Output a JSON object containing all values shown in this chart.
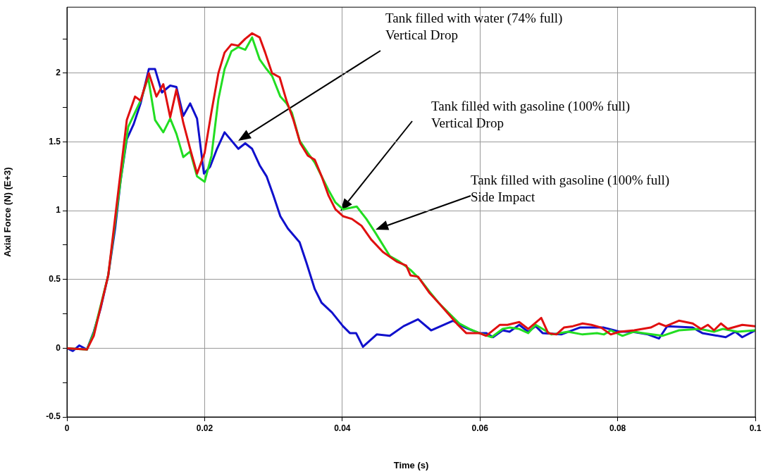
{
  "chart_data": {
    "type": "line",
    "xlabel": "Time (s)",
    "ylabel": "Axial Force (N) (E+3)",
    "xlim": [
      0,
      0.1
    ],
    "xticks": [
      0,
      0.02,
      0.04,
      0.06,
      0.08,
      0.1
    ],
    "ylim": [
      -0.5,
      2.48
    ],
    "yticks": [
      -0.5,
      {
        "value": -0.25,
        "label": null
      },
      0,
      {
        "value": 0.25,
        "label": null
      },
      0.5,
      {
        "value": 0.75,
        "label": null
      },
      1,
      {
        "value": 1.25,
        "label": null
      },
      1.5,
      {
        "value": 1.75,
        "label": null
      },
      2,
      {
        "value": 2.25,
        "label": null
      }
    ],
    "grid": true,
    "legend": false,
    "marker": "none",
    "line_style": "solid",
    "series": [
      {
        "color": "#e01010",
        "x": [
          0,
          0.0029,
          0.0039,
          0.006,
          0.0087,
          0.0099,
          0.0107,
          0.0119,
          0.013,
          0.014,
          0.015,
          0.0159,
          0.0169,
          0.0179,
          0.0189,
          0.02,
          0.021,
          0.022,
          0.0229,
          0.0239,
          0.0249,
          0.0259,
          0.0269,
          0.028,
          0.0288,
          0.0298,
          0.0309,
          0.0319,
          0.0329,
          0.0339,
          0.035,
          0.036,
          0.037,
          0.038,
          0.039,
          0.0401,
          0.0414,
          0.0428,
          0.0442,
          0.0459,
          0.0479,
          0.0493,
          0.0499,
          0.051,
          0.0527,
          0.054,
          0.0568,
          0.058,
          0.0599,
          0.0609,
          0.0629,
          0.064,
          0.0657,
          0.067,
          0.0689,
          0.0699,
          0.0711,
          0.0722,
          0.0735,
          0.0749,
          0.0762,
          0.0776,
          0.079,
          0.0803,
          0.0824,
          0.0848,
          0.086,
          0.087,
          0.0889,
          0.0909,
          0.0921,
          0.0931,
          0.094,
          0.095,
          0.096,
          0.0981,
          0.1
        ],
        "values": [
          0,
          -0.01,
          0.09,
          0.53,
          1.66,
          1.83,
          1.8,
          2.0,
          1.83,
          1.92,
          1.68,
          1.88,
          1.64,
          1.45,
          1.27,
          1.42,
          1.72,
          2.0,
          2.15,
          2.21,
          2.2,
          2.25,
          2.29,
          2.26,
          2.15,
          2.0,
          1.97,
          1.8,
          1.66,
          1.49,
          1.4,
          1.37,
          1.25,
          1.11,
          1.01,
          0.96,
          0.94,
          0.89,
          0.79,
          0.7,
          0.63,
          0.6,
          0.53,
          0.52,
          0.4,
          0.33,
          0.17,
          0.11,
          0.11,
          0.09,
          0.17,
          0.17,
          0.19,
          0.14,
          0.22,
          0.11,
          0.1,
          0.15,
          0.16,
          0.18,
          0.17,
          0.15,
          0.1,
          0.12,
          0.13,
          0.15,
          0.18,
          0.16,
          0.2,
          0.18,
          0.14,
          0.17,
          0.13,
          0.18,
          0.14,
          0.17,
          0.16
        ]
      },
      {
        "color": "#22dd22",
        "x": [
          0,
          0.0029,
          0.0039,
          0.006,
          0.0078,
          0.0089,
          0.0107,
          0.0118,
          0.0128,
          0.014,
          0.015,
          0.0159,
          0.0169,
          0.0179,
          0.0189,
          0.02,
          0.021,
          0.022,
          0.0229,
          0.0239,
          0.0249,
          0.0259,
          0.0269,
          0.028,
          0.029,
          0.0298,
          0.031,
          0.0319,
          0.0327,
          0.0338,
          0.035,
          0.036,
          0.037,
          0.038,
          0.039,
          0.0401,
          0.0411,
          0.0421,
          0.0435,
          0.0448,
          0.0469,
          0.0483,
          0.0499,
          0.0513,
          0.0527,
          0.054,
          0.057,
          0.0585,
          0.0599,
          0.0617,
          0.0633,
          0.0643,
          0.0657,
          0.067,
          0.0681,
          0.0691,
          0.0704,
          0.0728,
          0.0749,
          0.077,
          0.078,
          0.079,
          0.0807,
          0.0824,
          0.0837,
          0.0865,
          0.0889,
          0.0919,
          0.094,
          0.0953,
          0.0974,
          0.1
        ],
        "values": [
          0,
          -0.01,
          0.11,
          0.53,
          1.22,
          1.61,
          1.8,
          1.97,
          1.66,
          1.57,
          1.67,
          1.56,
          1.39,
          1.43,
          1.25,
          1.21,
          1.4,
          1.81,
          2.03,
          2.16,
          2.19,
          2.17,
          2.26,
          2.1,
          2.03,
          1.98,
          1.83,
          1.78,
          1.71,
          1.51,
          1.42,
          1.35,
          1.25,
          1.15,
          1.06,
          1.01,
          1.02,
          1.03,
          0.94,
          0.84,
          0.67,
          0.63,
          0.57,
          0.5,
          0.41,
          0.33,
          0.18,
          0.14,
          0.11,
          0.08,
          0.14,
          0.15,
          0.14,
          0.11,
          0.17,
          0.14,
          0.1,
          0.12,
          0.1,
          0.11,
          0.1,
          0.13,
          0.09,
          0.12,
          0.11,
          0.09,
          0.13,
          0.14,
          0.12,
          0.14,
          0.12,
          0.13
        ]
      },
      {
        "color": "#1010cc",
        "x": [
          0,
          0.00085,
          0.0018,
          0.0029,
          0.0039,
          0.0049,
          0.006,
          0.007,
          0.0078,
          0.0087,
          0.0097,
          0.0107,
          0.0119,
          0.0128,
          0.0138,
          0.015,
          0.0159,
          0.0169,
          0.0179,
          0.0189,
          0.0199,
          0.0208,
          0.0218,
          0.0229,
          0.0249,
          0.0259,
          0.0269,
          0.028,
          0.029,
          0.03,
          0.031,
          0.0321,
          0.0338,
          0.0348,
          0.036,
          0.037,
          0.0385,
          0.0401,
          0.0411,
          0.042,
          0.043,
          0.045,
          0.0469,
          0.0489,
          0.051,
          0.0529,
          0.0561,
          0.0578,
          0.0599,
          0.0609,
          0.0619,
          0.0633,
          0.0643,
          0.0657,
          0.067,
          0.0681,
          0.0691,
          0.0718,
          0.0745,
          0.078,
          0.0803,
          0.0821,
          0.0844,
          0.086,
          0.0872,
          0.0909,
          0.0923,
          0.0957,
          0.0971,
          0.0981,
          0.1
        ],
        "values": [
          0,
          -0.02,
          0.02,
          -0.01,
          0.12,
          0.29,
          0.53,
          0.87,
          1.22,
          1.52,
          1.63,
          1.78,
          2.03,
          2.03,
          1.86,
          1.91,
          1.9,
          1.69,
          1.78,
          1.67,
          1.27,
          1.32,
          1.45,
          1.57,
          1.45,
          1.49,
          1.45,
          1.33,
          1.25,
          1.11,
          0.96,
          0.87,
          0.77,
          0.62,
          0.43,
          0.33,
          0.26,
          0.16,
          0.11,
          0.11,
          0.01,
          0.1,
          0.09,
          0.16,
          0.21,
          0.13,
          0.2,
          0.15,
          0.11,
          0.11,
          0.08,
          0.13,
          0.12,
          0.17,
          0.12,
          0.16,
          0.11,
          0.1,
          0.15,
          0.15,
          0.12,
          0.12,
          0.1,
          0.07,
          0.16,
          0.15,
          0.11,
          0.08,
          0.12,
          0.08,
          0.13
        ]
      }
    ],
    "annotations": [
      "Tank filled with water (74% full)\nVertical Drop",
      "Tank filled with gasoline (100% full)\nVertical Drop",
      "Tank filled with gasoline (100% full)\nSide Impact"
    ]
  }
}
